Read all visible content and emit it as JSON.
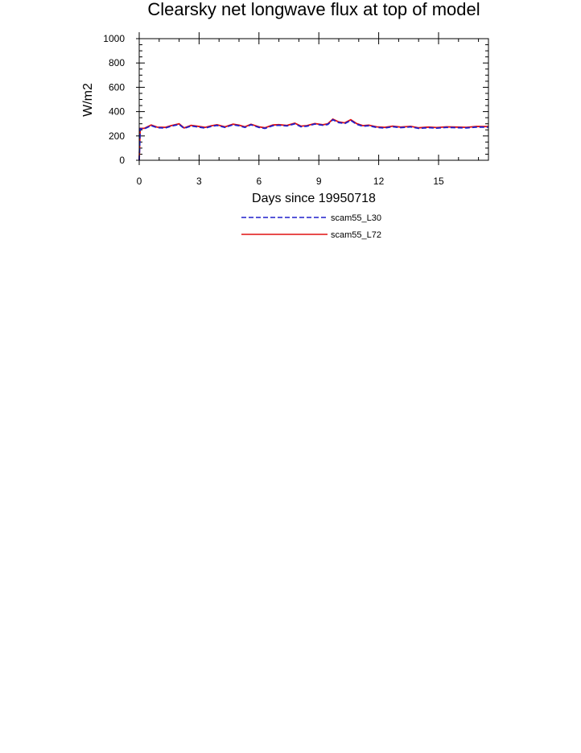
{
  "chart_data": {
    "type": "line",
    "title": "Clearsky net longwave flux at top of model",
    "xlabel": "Days since 19950718",
    "ylabel": "W/m2",
    "xlim": [
      0,
      17.5
    ],
    "ylim": [
      0,
      1000
    ],
    "xticks": [
      0,
      3,
      6,
      9,
      12,
      15
    ],
    "yticks": [
      0,
      200,
      400,
      600,
      800,
      1000
    ],
    "xtick_labels": [
      "0",
      "3",
      "6",
      "9",
      "12",
      "15"
    ],
    "ytick_labels": [
      "0",
      "200",
      "400",
      "600",
      "800",
      "1000"
    ],
    "grid": false,
    "legend_position": "below",
    "x": [
      0,
      0.05,
      0.25,
      0.6,
      0.9,
      1.3,
      1.6,
      2.0,
      2.25,
      2.6,
      2.9,
      3.3,
      3.6,
      3.9,
      4.3,
      4.7,
      5.0,
      5.3,
      5.6,
      6.0,
      6.3,
      6.7,
      7.0,
      7.4,
      7.8,
      8.1,
      8.4,
      8.8,
      9.2,
      9.45,
      9.7,
      10.0,
      10.3,
      10.6,
      10.9,
      11.2,
      11.5,
      11.9,
      12.3,
      12.7,
      13.1,
      13.6,
      14.0,
      14.5,
      14.9,
      15.4,
      15.9,
      16.4,
      16.9,
      17.5
    ],
    "series": [
      {
        "name": "scam55_L30",
        "color": "#1f1fcc",
        "dash": "dashed",
        "values": [
          0,
          258,
          258,
          285,
          268,
          265,
          280,
          295,
          262,
          282,
          275,
          265,
          278,
          287,
          270,
          292,
          284,
          270,
          292,
          270,
          262,
          285,
          288,
          282,
          300,
          276,
          280,
          298,
          288,
          295,
          333,
          310,
          302,
          328,
          296,
          280,
          284,
          270,
          265,
          276,
          268,
          275,
          262,
          268,
          264,
          270,
          268,
          266,
          273,
          272
        ]
      },
      {
        "name": "scam55_L72",
        "color": "#e01010",
        "dash": "solid",
        "values": [
          0,
          262,
          262,
          290,
          272,
          270,
          285,
          300,
          266,
          287,
          280,
          270,
          283,
          292,
          275,
          297,
          289,
          275,
          296,
          275,
          267,
          290,
          293,
          286,
          305,
          281,
          285,
          302,
          292,
          300,
          338,
          315,
          307,
          333,
          301,
          285,
          289,
          275,
          270,
          281,
          273,
          279,
          267,
          273,
          269,
          275,
          273,
          271,
          278,
          277
        ]
      }
    ]
  }
}
